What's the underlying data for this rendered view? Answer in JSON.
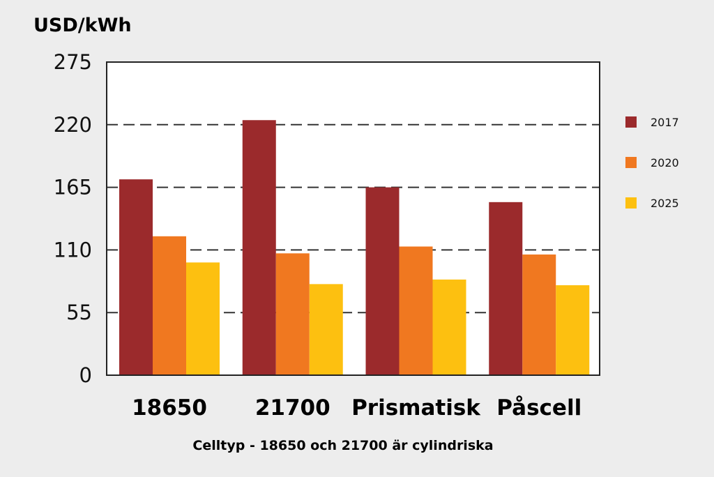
{
  "chart_data": {
    "type": "bar",
    "ylabel": "USD/kWh",
    "xlabel": "Celltyp - 18650 och 21700 är cylindriska",
    "categories": [
      "18650",
      "21700",
      "Prismatisk",
      "Påscell"
    ],
    "series": [
      {
        "name": "2017",
        "color": "#9b2a2c",
        "values": [
          172,
          224,
          165,
          152
        ]
      },
      {
        "name": "2020",
        "color": "#f07820",
        "values": [
          122,
          107,
          113,
          106
        ]
      },
      {
        "name": "2025",
        "color": "#fdc010",
        "values": [
          99,
          80,
          84,
          79
        ]
      }
    ],
    "yticks": [
      "275",
      "220",
      "165",
      "110",
      "55",
      "0"
    ],
    "ylim": [
      0,
      275
    ],
    "grid": "dashed horizontal lines at 55, 110, 165, 220",
    "legend_position": "right"
  }
}
